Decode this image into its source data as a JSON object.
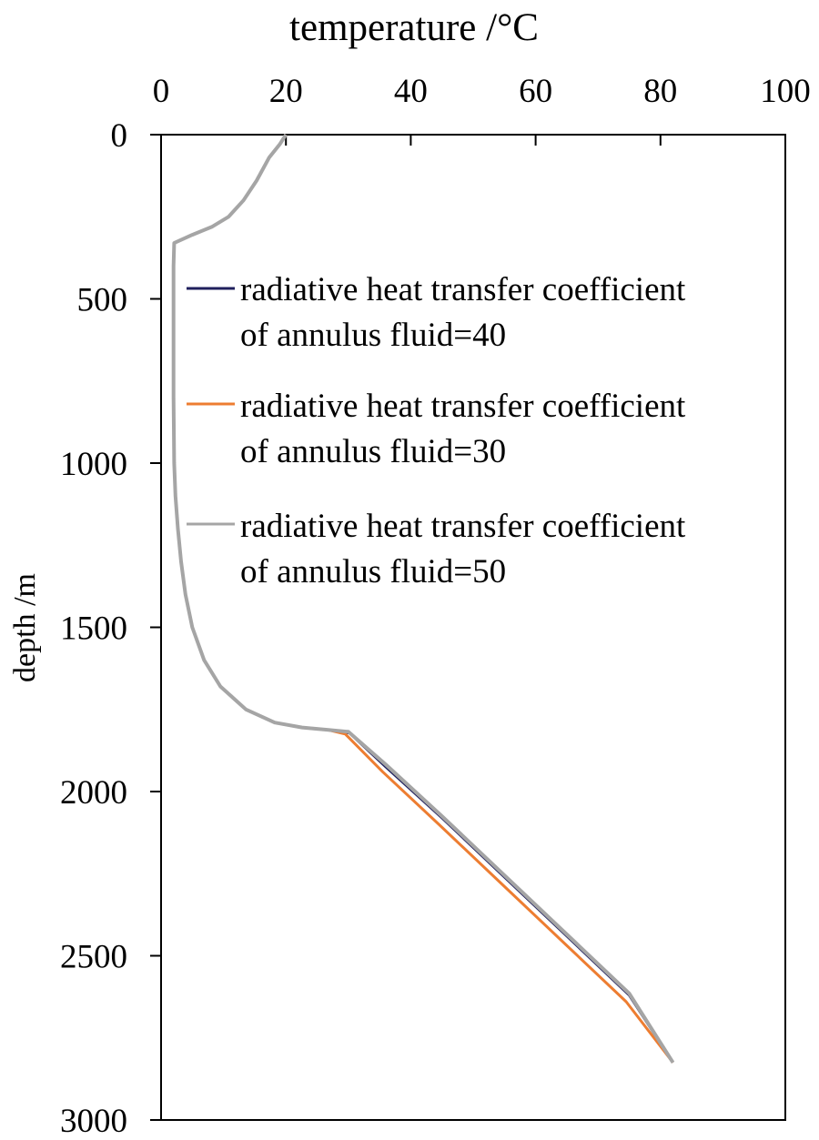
{
  "chart_data": {
    "type": "line",
    "title": "",
    "xlabel": "temperature /°C",
    "ylabel": "depth /m",
    "xlim": [
      0,
      100
    ],
    "ylim": [
      3000,
      0
    ],
    "x_axis_position": "top",
    "y_axis_inverted": true,
    "xticks": [
      "0",
      "20",
      "40",
      "60",
      "80",
      "100"
    ],
    "yticks": [
      "0",
      "500",
      "1000",
      "1500",
      "2000",
      "2500",
      "3000"
    ],
    "grid": false,
    "legend_position": "center-right",
    "series": [
      {
        "name_line1": "radiative heat transfer coefficient",
        "name_line2": "of annulus fluid=40",
        "color": "#1f1f5c",
        "points": [
          [
            20.0,
            0
          ],
          [
            19.0,
            30
          ],
          [
            17.3,
            70
          ],
          [
            15.3,
            140
          ],
          [
            13.2,
            200
          ],
          [
            10.8,
            250
          ],
          [
            8.2,
            280
          ],
          [
            5.0,
            305
          ],
          [
            2.1,
            330
          ],
          [
            2.0,
            400
          ],
          [
            2.0,
            600
          ],
          [
            2.0,
            800
          ],
          [
            2.1,
            1000
          ],
          [
            2.3,
            1100
          ],
          [
            2.7,
            1200
          ],
          [
            3.2,
            1300
          ],
          [
            3.9,
            1400
          ],
          [
            5.0,
            1500
          ],
          [
            6.9,
            1600
          ],
          [
            9.5,
            1680
          ],
          [
            13.6,
            1750
          ],
          [
            18.2,
            1790
          ],
          [
            22.6,
            1805
          ],
          [
            26.6,
            1812
          ],
          [
            30.2,
            1822
          ],
          [
            36.0,
            1925
          ],
          [
            45.0,
            2080
          ],
          [
            55.0,
            2260
          ],
          [
            65.0,
            2440
          ],
          [
            75.0,
            2620
          ],
          [
            82.0,
            2825
          ]
        ]
      },
      {
        "name_line1": "radiative heat transfer coefficient",
        "name_line2": "of annulus fluid=30",
        "color": "#ed7d31",
        "points": [
          [
            20.0,
            0
          ],
          [
            19.0,
            30
          ],
          [
            17.3,
            70
          ],
          [
            15.3,
            140
          ],
          [
            13.2,
            200
          ],
          [
            10.8,
            250
          ],
          [
            8.2,
            280
          ],
          [
            5.0,
            305
          ],
          [
            2.1,
            330
          ],
          [
            2.0,
            400
          ],
          [
            2.0,
            600
          ],
          [
            2.0,
            800
          ],
          [
            2.1,
            1000
          ],
          [
            2.3,
            1100
          ],
          [
            2.7,
            1200
          ],
          [
            3.2,
            1300
          ],
          [
            3.9,
            1400
          ],
          [
            5.0,
            1500
          ],
          [
            6.9,
            1600
          ],
          [
            9.5,
            1680
          ],
          [
            13.6,
            1750
          ],
          [
            18.2,
            1790
          ],
          [
            22.6,
            1805
          ],
          [
            26.6,
            1812
          ],
          [
            29.5,
            1825
          ],
          [
            35.5,
            1940
          ],
          [
            44.5,
            2100
          ],
          [
            54.5,
            2280
          ],
          [
            64.5,
            2460
          ],
          [
            74.5,
            2640
          ],
          [
            82.0,
            2825
          ]
        ]
      },
      {
        "name_line1": "radiative heat transfer coefficient",
        "name_line2": "of annulus fluid=50",
        "color": "#a5a5a5",
        "points": [
          [
            20.0,
            0
          ],
          [
            19.0,
            30
          ],
          [
            17.3,
            70
          ],
          [
            15.3,
            140
          ],
          [
            13.2,
            200
          ],
          [
            10.8,
            250
          ],
          [
            8.2,
            280
          ],
          [
            5.0,
            305
          ],
          [
            2.1,
            330
          ],
          [
            2.0,
            400
          ],
          [
            2.0,
            600
          ],
          [
            2.0,
            800
          ],
          [
            2.1,
            1000
          ],
          [
            2.3,
            1100
          ],
          [
            2.7,
            1200
          ],
          [
            3.2,
            1300
          ],
          [
            3.9,
            1400
          ],
          [
            5.0,
            1500
          ],
          [
            6.9,
            1600
          ],
          [
            9.5,
            1680
          ],
          [
            13.6,
            1750
          ],
          [
            18.2,
            1790
          ],
          [
            22.6,
            1805
          ],
          [
            26.6,
            1812
          ],
          [
            30.0,
            1818
          ],
          [
            36.0,
            1918
          ],
          [
            45.0,
            2075
          ],
          [
            55.0,
            2255
          ],
          [
            65.0,
            2435
          ],
          [
            75.0,
            2615
          ],
          [
            82.0,
            2825
          ]
        ]
      }
    ]
  }
}
